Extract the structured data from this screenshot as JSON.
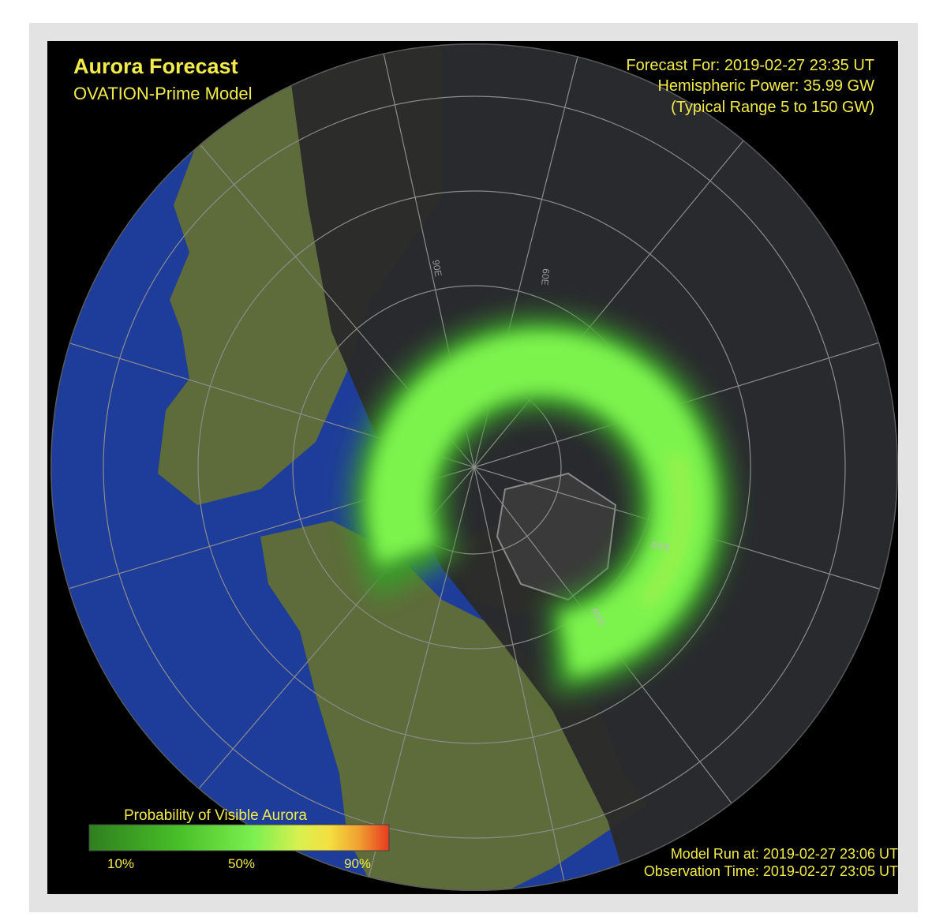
{
  "title": "Aurora Forecast",
  "subtitle": "OVATION-Prime Model",
  "forecast": {
    "time": "Forecast For: 2019-02-27 23:35 UT",
    "power": "Hemispheric Power: 35.99 GW",
    "range": "(Typical Range 5 to 150 GW)"
  },
  "grid_labels": [
    "90E",
    "60E",
    "30W",
    "60W"
  ],
  "legend": {
    "title": "Probability of Visible Aurora",
    "labels": [
      "10%",
      "50%",
      "90%"
    ]
  },
  "footer": {
    "model_run": "Model Run at: 2019-02-27 23:06 UT",
    "observation": "Observation Time: 2019-02-27 23:05 UT"
  }
}
